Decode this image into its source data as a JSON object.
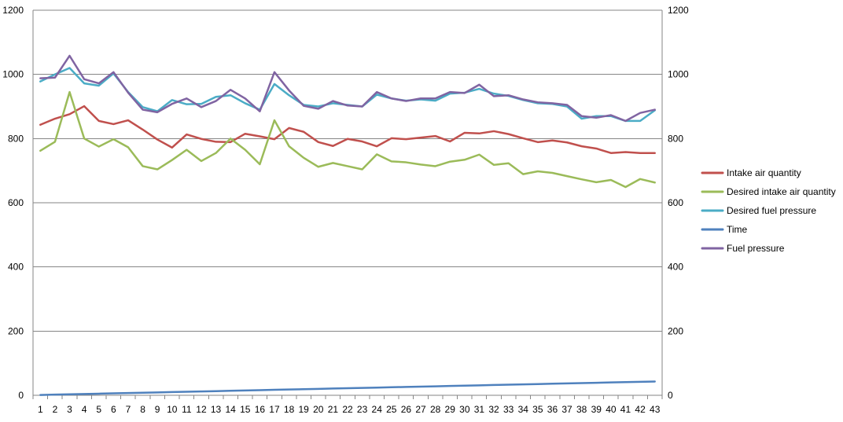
{
  "chart_data": {
    "type": "line",
    "title": "",
    "xlabel": "",
    "ylabel": "",
    "ylim": [
      0,
      1200
    ],
    "y2lim": [
      0,
      1200
    ],
    "yticks": [
      0,
      200,
      400,
      600,
      800,
      1000,
      1200
    ],
    "grid": "horizontal",
    "legend_position": "right",
    "categories": [
      "1",
      "2",
      "3",
      "4",
      "5",
      "6",
      "7",
      "8",
      "9",
      "10",
      "11",
      "12",
      "13",
      "14",
      "15",
      "16",
      "17",
      "18",
      "19",
      "20",
      "21",
      "22",
      "23",
      "24",
      "25",
      "26",
      "27",
      "28",
      "29",
      "30",
      "31",
      "32",
      "33",
      "34",
      "35",
      "36",
      "37",
      "38",
      "39",
      "40",
      "41",
      "42",
      "43"
    ],
    "series": [
      {
        "name": "Intake air quantity",
        "color": "#c0504d",
        "values": [
          843,
          862,
          876,
          901,
          855,
          845,
          857,
          828,
          797,
          772,
          813,
          799,
          790,
          789,
          815,
          807,
          798,
          833,
          821,
          789,
          777,
          799,
          791,
          776,
          801,
          798,
          803,
          808,
          791,
          818,
          816,
          823,
          814,
          801,
          789,
          794,
          788,
          776,
          769,
          755,
          758,
          755,
          755
        ]
      },
      {
        "name": "Desired intake air quantity",
        "color": "#9bbb59",
        "values": [
          762,
          790,
          945,
          800,
          775,
          798,
          773,
          714,
          704,
          733,
          765,
          730,
          755,
          800,
          765,
          720,
          857,
          776,
          740,
          712,
          724,
          714,
          704,
          751,
          729,
          726,
          719,
          714,
          728,
          734,
          750,
          718,
          723,
          689,
          698,
          693,
          683,
          673,
          664,
          671,
          649,
          674,
          663
        ]
      },
      {
        "name": "Desired fuel pressure",
        "color": "#4bacc6",
        "values": [
          978,
          1000,
          1020,
          972,
          965,
          1003,
          945,
          898,
          885,
          920,
          907,
          908,
          930,
          935,
          910,
          890,
          970,
          935,
          905,
          900,
          910,
          905,
          900,
          937,
          925,
          918,
          922,
          918,
          940,
          943,
          955,
          940,
          933,
          920,
          910,
          908,
          900,
          862,
          870,
          870,
          855,
          855,
          888
        ]
      },
      {
        "name": "Time",
        "color": "#4f81bd",
        "values": [
          1,
          2,
          3,
          4,
          5,
          6,
          7,
          8,
          9,
          10,
          11,
          12,
          13,
          14,
          15,
          16,
          17,
          18,
          19,
          20,
          21,
          22,
          23,
          24,
          25,
          26,
          27,
          28,
          29,
          30,
          31,
          32,
          33,
          34,
          35,
          36,
          37,
          38,
          39,
          40,
          41,
          42,
          43
        ]
      },
      {
        "name": "Fuel pressure",
        "color": "#8064a2",
        "values": [
          988,
          990,
          1058,
          985,
          972,
          1007,
          943,
          890,
          882,
          908,
          925,
          898,
          917,
          952,
          925,
          885,
          1007,
          950,
          902,
          893,
          917,
          903,
          900,
          945,
          925,
          917,
          925,
          925,
          945,
          942,
          968,
          932,
          935,
          922,
          913,
          910,
          905,
          870,
          865,
          873,
          855,
          880,
          890
        ]
      }
    ]
  }
}
